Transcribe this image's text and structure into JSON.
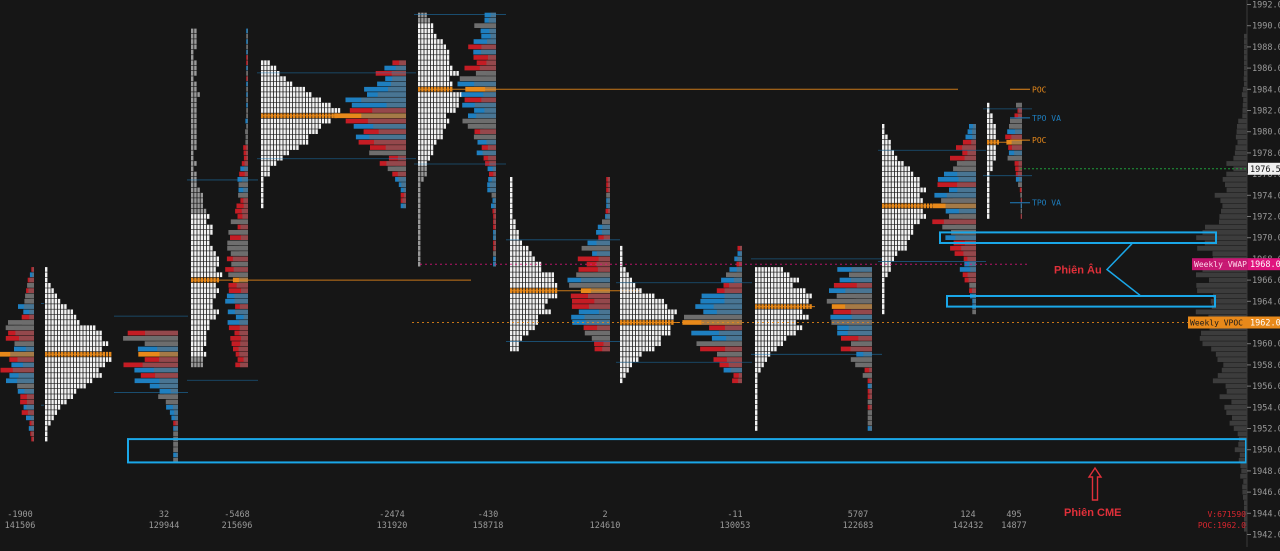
{
  "chart_data": {
    "type": "volume-profile",
    "y_axis": {
      "min": 1942,
      "max": 1992,
      "step": 2,
      "labels": [
        "1992.0",
        "1990.0",
        "1988.0",
        "1986.0",
        "1984.0",
        "1982.0",
        "1980.0",
        "1978.0",
        "1976.0",
        "1974.0",
        "1972.0",
        "1970.0",
        "1968.0",
        "1966.0",
        "1964.0",
        "1962.0",
        "1960.0",
        "1958.0",
        "1956.0",
        "1954.0",
        "1952.0",
        "1950.0",
        "1948.0",
        "1946.0",
        "1944.0",
        "1942.0"
      ]
    },
    "current_price": {
      "value": 1976.5,
      "label": "1976.5"
    },
    "weekly_markers": [
      {
        "name": "Weekly VWAP",
        "price": 1967.5,
        "label": "Weekly VWAP",
        "price_label": "1968.0",
        "color": "#e0147e"
      },
      {
        "name": "Weekly VPOC",
        "price": 1962.0,
        "label": "Weekly VPOC",
        "price_label": "1962.0",
        "color": "#e8891a"
      }
    ],
    "session_labels": [
      {
        "text": "POC",
        "price": 1984.0
      },
      {
        "text": "TPO VA",
        "price": 1981.3
      },
      {
        "text": "POC",
        "price": 1979.2
      },
      {
        "text": "TPO VA",
        "price": 1973.3
      }
    ],
    "sessions": [
      {
        "delta": "-1900",
        "volume": "141506",
        "low": 1951.0,
        "high": 1967.0,
        "poc": 1959.0
      },
      {
        "delta": "32",
        "volume": "129944",
        "low": 1949.0,
        "high": 1961.0,
        "poc": 1959.0
      },
      {
        "delta": "-5468",
        "volume": "215696",
        "low": 1958.0,
        "high": 1989.5,
        "poc": 1966.0
      },
      {
        "delta": "-2474",
        "volume": "131920",
        "low": 1973.0,
        "high": 1986.5,
        "poc": 1981.5
      },
      {
        "delta": "-430",
        "volume": "158718",
        "low": 1967.5,
        "high": 1991.0,
        "poc": 1984.0
      },
      {
        "delta": "2",
        "volume": "124610",
        "low": 1959.5,
        "high": 1975.5,
        "poc": 1965.0
      },
      {
        "delta": "-11",
        "volume": "130053",
        "low": 1956.5,
        "high": 1969.0,
        "poc": 1962.0
      },
      {
        "delta": "5707",
        "volume": "122683",
        "low": 1952.0,
        "high": 1967.0,
        "poc": 1963.5
      },
      {
        "delta": "124",
        "volume": "142432",
        "low": 1963.0,
        "high": 1980.5,
        "poc": 1973.0
      },
      {
        "delta": "495",
        "volume": "14877",
        "low": 1972.0,
        "high": 1982.5,
        "poc": 1979.0
      }
    ],
    "annotations": [
      {
        "text": "Phiên Âu",
        "color": "#e0303a",
        "zones": [
          [
            1969.5,
            1970.5
          ],
          [
            1963.5,
            1964.5
          ]
        ]
      },
      {
        "text": "Phiên CME",
        "color": "#e0303a",
        "zones": [
          [
            1948.8,
            1951.0
          ]
        ]
      }
    ],
    "footer": {
      "volume_total": "V:671590",
      "poc": "POC:1962.0"
    },
    "colors": {
      "background": "#161616",
      "tpo": "#f2f2f2",
      "buy": "#1e7fc0",
      "sell": "#c41c24",
      "neutral": "#6e6e6e",
      "poc": "#e8891a",
      "annotation_box": "#1aa7e8",
      "current_price_line": "#1e9b3a"
    }
  }
}
